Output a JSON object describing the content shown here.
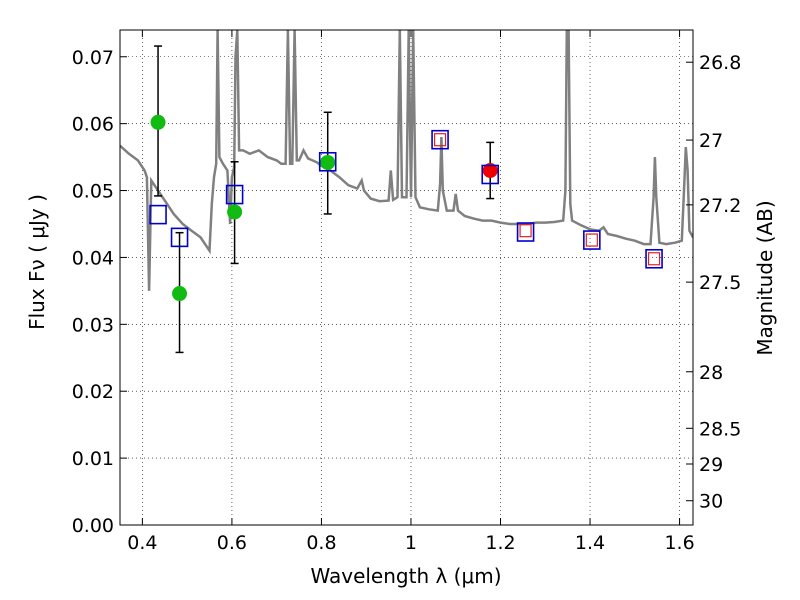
{
  "chart_data": {
    "type": "scatter",
    "xlabel": "Wavelength  λ (μm)",
    "ylabel": "Flux  Fν  ( μJy )",
    "y2label": "Magnitude (AB)",
    "xlim": [
      0.35,
      1.63
    ],
    "ylim": [
      0.0,
      0.074
    ],
    "grid": true,
    "xticks": [
      0.4,
      0.6,
      0.8,
      1.0,
      1.2,
      1.4,
      1.6
    ],
    "xtick_labels": [
      "0.4",
      "0.6",
      "0.8",
      "1",
      "1.2",
      "1.4",
      "1.6"
    ],
    "yticks": [
      0.0,
      0.01,
      0.02,
      0.03,
      0.04,
      0.05,
      0.06,
      0.07
    ],
    "ytick_labels": [
      "0.00",
      "0.01",
      "0.02",
      "0.03",
      "0.04",
      "0.05",
      "0.06",
      "0.07"
    ],
    "y2ticks": [
      26.8,
      27,
      27.2,
      27.5,
      28,
      28.5,
      29,
      30
    ],
    "y2tick_labels": [
      "26.8",
      "27",
      "27.2",
      "27.5",
      "28",
      "28.5",
      "29",
      "30"
    ],
    "series": [
      {
        "name": "observed (optical)",
        "marker": "circle",
        "color": "#11bb11",
        "points": [
          {
            "x": 0.435,
            "y": 0.0602,
            "yerr": [
              0.0492,
              0.0716
            ]
          },
          {
            "x": 0.483,
            "y": 0.0346,
            "yerr": [
              0.0258,
              0.0437
            ]
          },
          {
            "x": 0.606,
            "y": 0.0468,
            "yerr": [
              0.0391,
              0.0543
            ]
          },
          {
            "x": 0.814,
            "y": 0.0542,
            "yerr": [
              0.0465,
              0.0617
            ]
          }
        ]
      },
      {
        "name": "observed (NIR)",
        "marker": "circle",
        "color": "#ee0000",
        "points": [
          {
            "x": 1.177,
            "y": 0.053,
            "yerr": [
              0.0488,
              0.0572
            ]
          }
        ]
      },
      {
        "name": "model photometry",
        "marker": "square",
        "color": "#0000cc",
        "points": [
          {
            "x": 0.435,
            "y": 0.0464
          },
          {
            "x": 0.483,
            "y": 0.043
          },
          {
            "x": 0.606,
            "y": 0.0494
          },
          {
            "x": 0.814,
            "y": 0.0543
          },
          {
            "x": 1.065,
            "y": 0.0576
          },
          {
            "x": 1.177,
            "y": 0.0524
          },
          {
            "x": 1.256,
            "y": 0.0438
          },
          {
            "x": 1.404,
            "y": 0.0426
          },
          {
            "x": 1.543,
            "y": 0.0398
          }
        ]
      },
      {
        "name": "upper limit",
        "marker": "small-square",
        "color": "#dd2222",
        "points": [
          {
            "x": 1.065,
            "y": 0.0576
          },
          {
            "x": 1.256,
            "y": 0.044
          },
          {
            "x": 1.404,
            "y": 0.0426
          },
          {
            "x": 1.543,
            "y": 0.0398
          }
        ]
      },
      {
        "name": "model SED",
        "type": "line",
        "color": "#808080",
        "points": [
          [
            0.35,
            0.0567
          ],
          [
            0.37,
            0.0555
          ],
          [
            0.39,
            0.0545
          ],
          [
            0.405,
            0.053
          ],
          [
            0.41,
            0.052
          ],
          [
            0.415,
            0.035
          ],
          [
            0.42,
            0.0515
          ],
          [
            0.43,
            0.0505
          ],
          [
            0.45,
            0.0485
          ],
          [
            0.47,
            0.0465
          ],
          [
            0.49,
            0.045
          ],
          [
            0.51,
            0.044
          ],
          [
            0.53,
            0.043
          ],
          [
            0.545,
            0.0415
          ],
          [
            0.55,
            0.041
          ],
          [
            0.555,
            0.048
          ],
          [
            0.56,
            0.052
          ],
          [
            0.565,
            0.054
          ],
          [
            0.568,
            0.074
          ],
          [
            0.572,
            0.055
          ],
          [
            0.58,
            0.054
          ],
          [
            0.59,
            0.053
          ],
          [
            0.596,
            0.045
          ],
          [
            0.6,
            0.052
          ],
          [
            0.605,
            0.0535
          ],
          [
            0.608,
            0.07
          ],
          [
            0.612,
            0.074
          ],
          [
            0.616,
            0.056
          ],
          [
            0.625,
            0.056
          ],
          [
            0.64,
            0.0555
          ],
          [
            0.66,
            0.056
          ],
          [
            0.67,
            0.0555
          ],
          [
            0.68,
            0.055
          ],
          [
            0.7,
            0.0545
          ],
          [
            0.71,
            0.054
          ],
          [
            0.72,
            0.054
          ],
          [
            0.725,
            0.074
          ],
          [
            0.73,
            0.054
          ],
          [
            0.735,
            0.054
          ],
          [
            0.74,
            0.074
          ],
          [
            0.745,
            0.0545
          ],
          [
            0.75,
            0.0545
          ],
          [
            0.76,
            0.056
          ],
          [
            0.77,
            0.0548
          ],
          [
            0.79,
            0.0542
          ],
          [
            0.8,
            0.0537
          ],
          [
            0.82,
            0.053
          ],
          [
            0.84,
            0.052
          ],
          [
            0.86,
            0.0508
          ],
          [
            0.88,
            0.0503
          ],
          [
            0.89,
            0.0515
          ],
          [
            0.895,
            0.05
          ],
          [
            0.91,
            0.0488
          ],
          [
            0.93,
            0.0484
          ],
          [
            0.95,
            0.0485
          ],
          [
            0.955,
            0.053
          ],
          [
            0.96,
            0.0486
          ],
          [
            0.97,
            0.049
          ],
          [
            0.975,
            0.074
          ],
          [
            0.98,
            0.049
          ],
          [
            0.99,
            0.049
          ],
          [
            0.995,
            0.074
          ],
          [
            1.0,
            0.049
          ],
          [
            1.005,
            0.074
          ],
          [
            1.01,
            0.049
          ],
          [
            1.02,
            0.0475
          ],
          [
            1.04,
            0.0472
          ],
          [
            1.06,
            0.047
          ],
          [
            1.065,
            0.051
          ],
          [
            1.068,
            0.058
          ],
          [
            1.071,
            0.05
          ],
          [
            1.08,
            0.047
          ],
          [
            1.095,
            0.047
          ],
          [
            1.1,
            0.0495
          ],
          [
            1.105,
            0.047
          ],
          [
            1.12,
            0.0462
          ],
          [
            1.14,
            0.0458
          ],
          [
            1.16,
            0.0455
          ],
          [
            1.18,
            0.0455
          ],
          [
            1.2,
            0.0452
          ],
          [
            1.22,
            0.045
          ],
          [
            1.24,
            0.045
          ],
          [
            1.26,
            0.045
          ],
          [
            1.28,
            0.0452
          ],
          [
            1.3,
            0.0452
          ],
          [
            1.32,
            0.0453
          ],
          [
            1.34,
            0.0455
          ],
          [
            1.345,
            0.05
          ],
          [
            1.348,
            0.074
          ],
          [
            1.352,
            0.074
          ],
          [
            1.356,
            0.048
          ],
          [
            1.36,
            0.0455
          ],
          [
            1.38,
            0.0448
          ],
          [
            1.4,
            0.0442
          ],
          [
            1.42,
            0.044
          ],
          [
            1.43,
            0.0445
          ],
          [
            1.44,
            0.0435
          ],
          [
            1.46,
            0.0432
          ],
          [
            1.48,
            0.0428
          ],
          [
            1.5,
            0.0425
          ],
          [
            1.52,
            0.042
          ],
          [
            1.535,
            0.042
          ],
          [
            1.542,
            0.049
          ],
          [
            1.545,
            0.055
          ],
          [
            1.548,
            0.049
          ],
          [
            1.555,
            0.0422
          ],
          [
            1.57,
            0.042
          ],
          [
            1.59,
            0.0422
          ],
          [
            1.605,
            0.0425
          ],
          [
            1.61,
            0.05
          ],
          [
            1.614,
            0.0565
          ],
          [
            1.618,
            0.053
          ],
          [
            1.622,
            0.044
          ],
          [
            1.63,
            0.043
          ]
        ]
      }
    ]
  }
}
